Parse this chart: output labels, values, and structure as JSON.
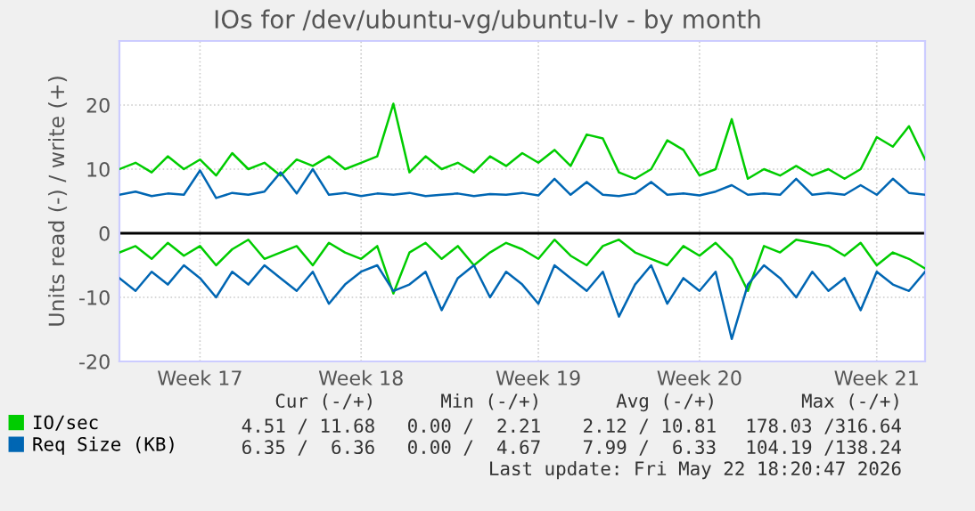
{
  "chart_data": {
    "type": "line",
    "title": "IOs for /dev/ubuntu-vg/ubuntu-lv - by month",
    "ylabel": "Units read (-) / write (+)",
    "categories": [
      null,
      null,
      null,
      null,
      null,
      "Week 17",
      null,
      null,
      null,
      null,
      null,
      null,
      null,
      null,
      null,
      "Week 18",
      null,
      null,
      null,
      null,
      null,
      null,
      null,
      null,
      null,
      null,
      "Week 19",
      null,
      null,
      null,
      null,
      null,
      null,
      null,
      null,
      null,
      "Week 20",
      null,
      null,
      null,
      null,
      null,
      null,
      null,
      null,
      null,
      null,
      "Week 21",
      null,
      null,
      null
    ],
    "series": [
      {
        "name": "IO/sec",
        "color": "#00cc00",
        "values": [
          10,
          11,
          9.5,
          12,
          10,
          11.5,
          9,
          12.5,
          10,
          11,
          9,
          11.5,
          10.5,
          12,
          10,
          11,
          12,
          20.2,
          9.5,
          12,
          10,
          11,
          9.5,
          12,
          10.5,
          12.5,
          11,
          13,
          10.5,
          15.4,
          14.8,
          9.5,
          8.5,
          10,
          14.5,
          13,
          9,
          10,
          17.8,
          8.5,
          10,
          9,
          10.5,
          9,
          10,
          8.5,
          10,
          15,
          13.5,
          16.7,
          11.5
        ]
      },
      {
        "color": "#00cc00",
        "values": [
          -3,
          -2,
          -4,
          -1.5,
          -3.5,
          -2,
          -5,
          -2.5,
          -1,
          -4,
          -3,
          -2,
          -5,
          -1.5,
          -3,
          -4,
          -2,
          -9.4,
          -3,
          -1.5,
          -4,
          -2,
          -5,
          -3,
          -1.5,
          -2.5,
          -4,
          -1,
          -3.5,
          -5,
          -2,
          -1,
          -3,
          -4,
          -5,
          -2,
          -3.5,
          -1.5,
          -4,
          -9,
          -2,
          -3,
          -1,
          -1.5,
          -2,
          -3.5,
          -1.5,
          -5,
          -3,
          -4,
          -5.5
        ]
      },
      {
        "name": "Req Size (KB)",
        "color": "#0066b3",
        "values": [
          6,
          6.5,
          5.8,
          6.2,
          6,
          9.8,
          5.5,
          6.3,
          6,
          6.5,
          9.5,
          6.2,
          10,
          6,
          6.3,
          5.8,
          6.2,
          6,
          6.3,
          5.8,
          6,
          6.2,
          5.8,
          6.1,
          6,
          6.3,
          5.9,
          8.5,
          6,
          8,
          6,
          5.8,
          6.2,
          8,
          6,
          6.2,
          5.9,
          6.5,
          7.5,
          6,
          6.2,
          6,
          8.5,
          6,
          6.3,
          6,
          7.5,
          6,
          8.5,
          6.3,
          6
        ]
      },
      {
        "color": "#0066b3",
        "values": [
          -7,
          -9,
          -6,
          -8,
          -5,
          -7,
          -10,
          -6,
          -8,
          -5,
          -7,
          -9,
          -6,
          -11,
          -8,
          -6,
          -5,
          -9,
          -8,
          -6,
          -12,
          -7,
          -5,
          -10,
          -6,
          -8,
          -11,
          -5,
          -7,
          -9,
          -6,
          -13,
          -8,
          -5,
          -11,
          -7,
          -9,
          -6,
          -16.5,
          -8,
          -5,
          -7,
          -10,
          -6,
          -9,
          -7,
          -12,
          -6,
          -8,
          -9,
          -6
        ]
      }
    ],
    "ylim": [
      -20,
      30
    ],
    "yticks": [
      -20,
      -10,
      0,
      10,
      20
    ],
    "ref_lines": [
      {
        "axis": "y",
        "value": 0,
        "color": "#000000",
        "line_style": "solid"
      }
    ],
    "grid": true,
    "marker": "none",
    "line_style": "solid",
    "legend": "bottom left",
    "annotations": [
      "Cur (-/+)",
      "Min (-/+)",
      "Avg (-/+)",
      "Max (-/+)",
      "4.51 / 11.68",
      "0.00 /  2.21",
      "2.12 / 10.81",
      "178.03 /316.64",
      "6.35 /  6.36",
      "0.00 /  4.67",
      "7.99 /  6.33",
      "104.19 /138.24",
      "Last update: Fri May 22 18:20:47 2026"
    ]
  }
}
